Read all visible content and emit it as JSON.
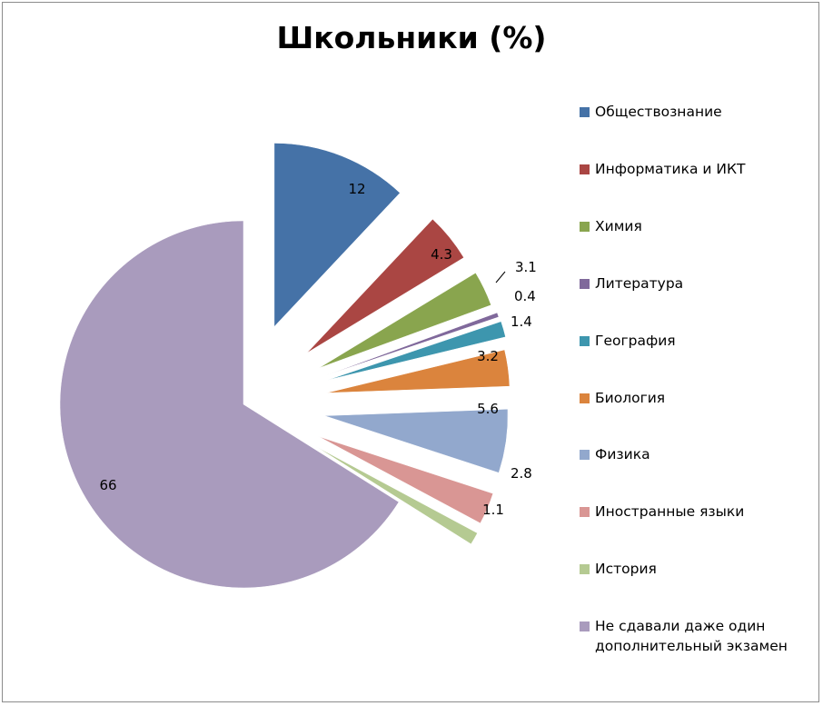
{
  "chart_data": {
    "type": "pie",
    "title": "Школьники (%)",
    "slices": [
      {
        "label": "Обществознание",
        "value": 12,
        "color": "#4572A7",
        "exploded": true
      },
      {
        "label": "Информатика и ИКТ",
        "value": 4.3,
        "color": "#AA4643",
        "exploded": true
      },
      {
        "label": "Химия",
        "value": 3.1,
        "color": "#89A54E",
        "exploded": true
      },
      {
        "label": "Литература",
        "value": 0.4,
        "color": "#80699B",
        "exploded": true
      },
      {
        "label": "География",
        "value": 1.4,
        "color": "#3D96AE",
        "exploded": true
      },
      {
        "label": "Биология",
        "value": 3.2,
        "color": "#DB843D",
        "exploded": true
      },
      {
        "label": "Физика",
        "value": 5.6,
        "color": "#92A8CD",
        "exploded": true
      },
      {
        "label": "Иностранные языки",
        "value": 2.8,
        "color": "#D99694",
        "exploded": true
      },
      {
        "label": "История",
        "value": 1.1,
        "color": "#B5CA92",
        "exploded": true
      },
      {
        "label": "Не сдавали даже один дополнительный экзамен",
        "value": 66,
        "color": "#A99BBD",
        "exploded": false
      }
    ],
    "legend_position": "right",
    "data_labels": true,
    "legend_labels": [
      [
        "Обществознание"
      ],
      [
        "Информатика и ИКТ"
      ],
      [
        "Химия"
      ],
      [
        "Литература"
      ],
      [
        "География"
      ],
      [
        "Биология"
      ],
      [
        "Физика"
      ],
      [
        "Иностранные языки"
      ],
      [
        "История"
      ],
      [
        "Не сдавали даже один",
        "дополнительный экзамен"
      ]
    ]
  }
}
